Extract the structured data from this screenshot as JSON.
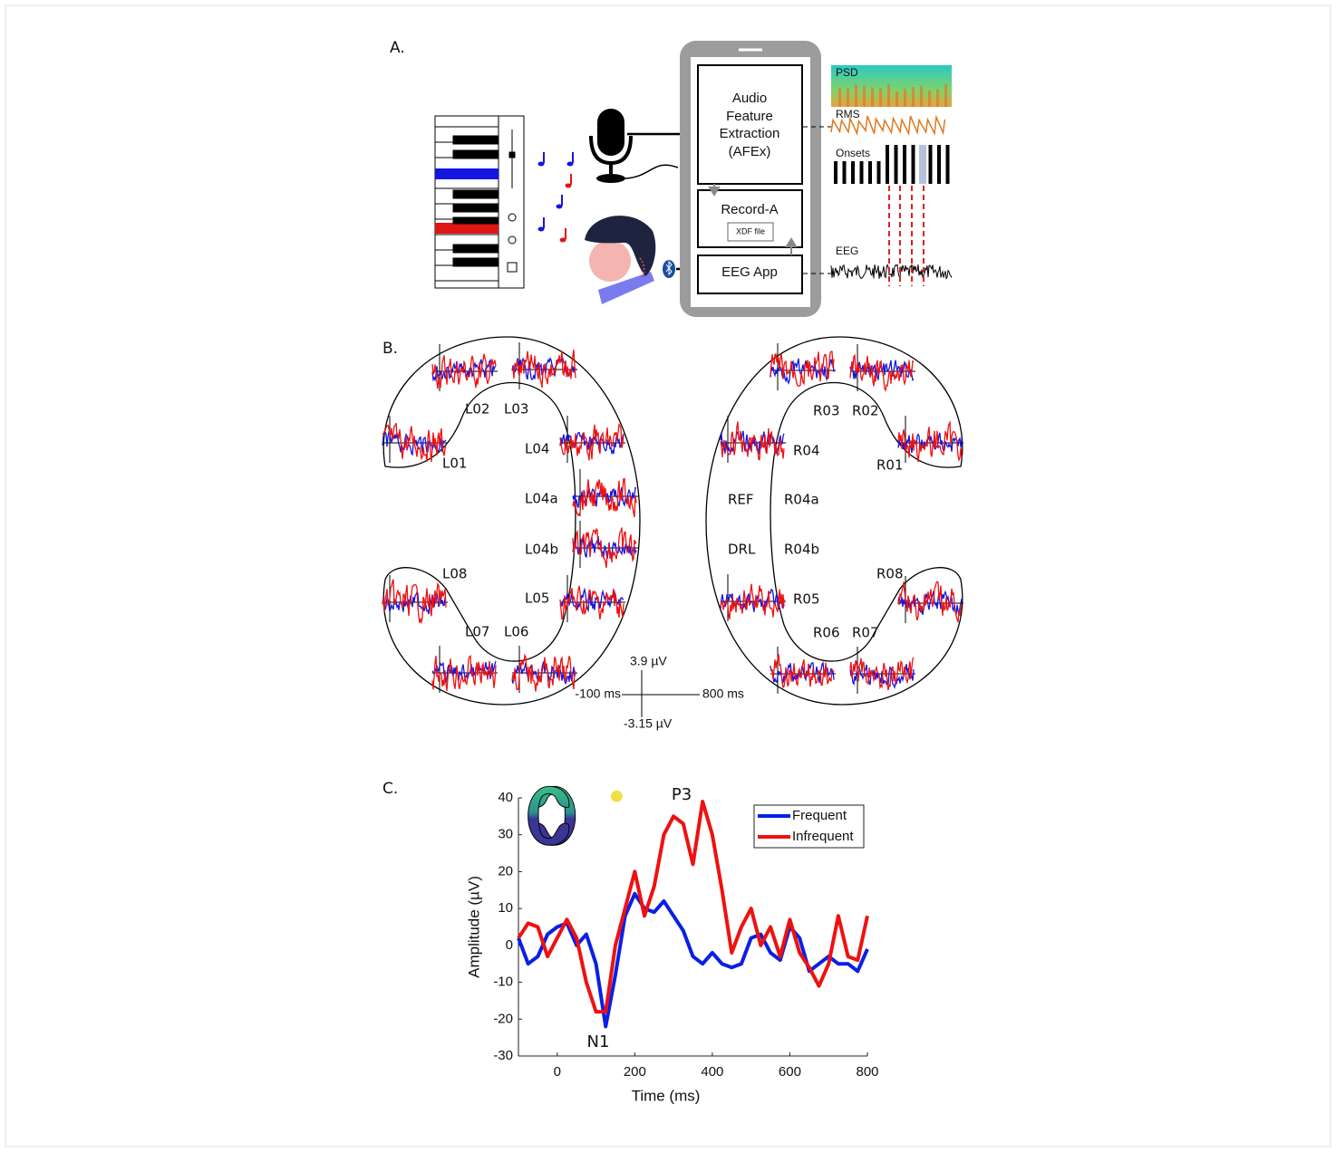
{
  "panel_a": {
    "label": "A.",
    "afex": [
      "Audio",
      "Feature",
      "Extraction",
      "(AFEx)"
    ],
    "record": "Record-A",
    "xdf": "XDF file",
    "eeg_app": "EEG App",
    "psd": "PSD",
    "rms": "RMS",
    "onsets": "Onsets",
    "eeg": "EEG"
  },
  "panel_b": {
    "label": "B.",
    "electrodes": [
      "L02",
      "L03",
      "L01",
      "L04",
      "L04a",
      "L04b",
      "L08",
      "L05",
      "L07",
      "L06",
      "R03",
      "R02",
      "R04",
      "R01",
      "REF",
      "R04a",
      "DRL",
      "R04b",
      "R08",
      "R05",
      "R06",
      "R07"
    ],
    "scale": {
      "top": "3.9 µV",
      "left": "-100 ms",
      "right": "800 ms",
      "bottom": "-3.15 µV"
    }
  },
  "chart_data": {
    "type": "line",
    "label": "C.",
    "x": [
      -100,
      -75,
      -50,
      -25,
      0,
      25,
      50,
      75,
      100,
      125,
      150,
      175,
      200,
      225,
      250,
      275,
      300,
      325,
      350,
      375,
      400,
      425,
      450,
      475,
      500,
      525,
      550,
      575,
      600,
      625,
      650,
      675,
      700,
      725,
      750,
      775,
      800
    ],
    "series": [
      {
        "name": "Frequent",
        "color": "#0a1fe6",
        "values": [
          2,
          -5,
          -3,
          3,
          5,
          6,
          0,
          3,
          -5,
          -22,
          -8,
          8,
          14,
          10,
          9,
          12,
          8,
          4,
          -3,
          -5,
          -2,
          -5,
          -6,
          -5,
          2,
          3,
          -2,
          -4,
          5,
          2,
          -7,
          -5,
          -3,
          -5,
          -5,
          -7,
          -1
        ]
      },
      {
        "name": "Infrequent",
        "color": "#ee1111",
        "values": [
          2,
          6,
          5,
          -3,
          2,
          7,
          2,
          -10,
          -18,
          -18,
          0,
          10,
          20,
          8,
          16,
          30,
          35,
          33,
          22,
          39,
          30,
          15,
          -2,
          5,
          10,
          0,
          5,
          -3,
          7,
          -2,
          -6,
          -11,
          -5,
          8,
          -3,
          -4,
          8
        ]
      }
    ],
    "xlim": [
      -100,
      800
    ],
    "xticks": [
      0,
      200,
      400,
      600,
      800
    ],
    "ylim": [
      -30,
      40
    ],
    "yticks": [
      -30,
      -20,
      -10,
      0,
      10,
      20,
      30,
      40
    ],
    "xlabel": "Time (ms)",
    "ylabel": "Amplitude (µV)",
    "annotations": [
      "N1",
      "P3"
    ],
    "legend": "upper right"
  }
}
